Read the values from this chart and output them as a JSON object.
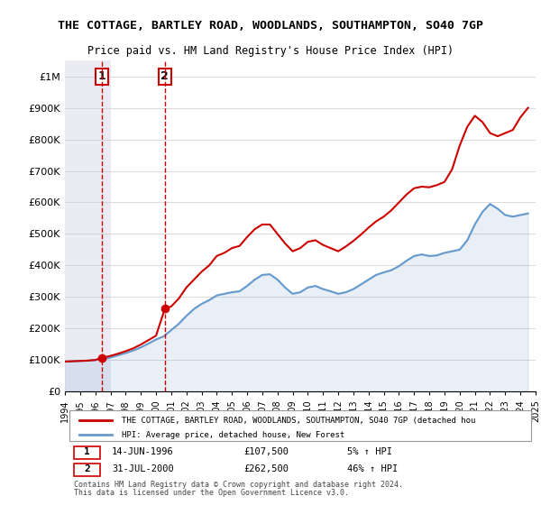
{
  "title": "THE COTTAGE, BARTLEY ROAD, WOODLANDS, SOUTHAMPTON, SO40 7GP",
  "subtitle": "Price paid vs. HM Land Registry's House Price Index (HPI)",
  "legend_line1": "THE COTTAGE, BARTLEY ROAD, WOODLANDS, SOUTHAMPTON, SO40 7GP (detached hou",
  "legend_line2": "HPI: Average price, detached house, New Forest",
  "footnote1": "Contains HM Land Registry data © Crown copyright and database right 2024.",
  "footnote2": "This data is licensed under the Open Government Licence v3.0.",
  "transaction1_label": "1",
  "transaction1_date": "14-JUN-1996",
  "transaction1_price": "£107,500",
  "transaction1_hpi": "5% ↑ HPI",
  "transaction2_label": "2",
  "transaction2_date": "31-JUL-2000",
  "transaction2_price": "£262,500",
  "transaction2_hpi": "46% ↑ HPI",
  "ylim": [
    0,
    1050000
  ],
  "yticks": [
    0,
    100000,
    200000,
    300000,
    400000,
    500000,
    600000,
    700000,
    800000,
    900000,
    1000000
  ],
  "ytick_labels": [
    "£0",
    "£100K",
    "£200K",
    "£300K",
    "£400K",
    "£500K",
    "£600K",
    "£700K",
    "£800K",
    "£900K",
    "£1M"
  ],
  "red_color": "#cc0000",
  "blue_color": "#6699cc",
  "background_hatch_color": "#e8e8f0",
  "transaction1_x": 1996.45,
  "transaction1_y": 107500,
  "transaction2_x": 2000.58,
  "transaction2_y": 262500,
  "hpi_line": {
    "x": [
      1994,
      1994.5,
      1995,
      1995.5,
      1996,
      1996.5,
      1997,
      1997.5,
      1998,
      1998.5,
      1999,
      1999.5,
      2000,
      2000.5,
      2001,
      2001.5,
      2002,
      2002.5,
      2003,
      2003.5,
      2004,
      2004.5,
      2005,
      2005.5,
      2006,
      2006.5,
      2007,
      2007.5,
      2008,
      2008.5,
      2009,
      2009.5,
      2010,
      2010.5,
      2011,
      2011.5,
      2012,
      2012.5,
      2013,
      2013.5,
      2014,
      2014.5,
      2015,
      2015.5,
      2016,
      2016.5,
      2017,
      2017.5,
      2018,
      2018.5,
      2019,
      2019.5,
      2020,
      2020.5,
      2021,
      2021.5,
      2022,
      2022.5,
      2023,
      2023.5,
      2024,
      2024.5
    ],
    "y": [
      95000,
      96000,
      97000,
      98000,
      100000,
      102000,
      108000,
      115000,
      122000,
      130000,
      140000,
      152000,
      165000,
      175000,
      195000,
      215000,
      240000,
      262000,
      278000,
      290000,
      305000,
      310000,
      315000,
      318000,
      335000,
      355000,
      370000,
      372000,
      355000,
      330000,
      310000,
      315000,
      330000,
      335000,
      325000,
      318000,
      310000,
      315000,
      325000,
      340000,
      355000,
      370000,
      378000,
      385000,
      398000,
      415000,
      430000,
      435000,
      430000,
      432000,
      440000,
      445000,
      450000,
      480000,
      530000,
      570000,
      595000,
      580000,
      560000,
      555000,
      560000,
      565000
    ]
  },
  "price_line": {
    "x": [
      1994,
      1994.5,
      1995,
      1995.5,
      1996,
      1996.45,
      1996.5,
      1997,
      1997.5,
      1998,
      1998.5,
      1999,
      1999.5,
      2000,
      2000.58,
      2000.6,
      2001,
      2001.5,
      2002,
      2002.5,
      2003,
      2003.5,
      2004,
      2004.5,
      2005,
      2005.5,
      2006,
      2006.5,
      2007,
      2007.5,
      2008,
      2008.5,
      2009,
      2009.5,
      2010,
      2010.5,
      2011,
      2011.5,
      2012,
      2012.5,
      2013,
      2013.5,
      2014,
      2014.5,
      2015,
      2015.5,
      2016,
      2016.5,
      2017,
      2017.5,
      2018,
      2018.5,
      2019,
      2019.5,
      2020,
      2020.5,
      2021,
      2021.5,
      2022,
      2022.5,
      2023,
      2023.5,
      2024,
      2024.5
    ],
    "y": [
      95000,
      96000,
      97000,
      98000,
      100000,
      107500,
      107500,
      113000,
      120000,
      128000,
      137000,
      149000,
      163000,
      177000,
      262500,
      262500,
      270000,
      295000,
      330000,
      355000,
      380000,
      400000,
      430000,
      440000,
      455000,
      462000,
      490000,
      515000,
      530000,
      530000,
      500000,
      470000,
      445000,
      455000,
      475000,
      480000,
      465000,
      455000,
      445000,
      460000,
      478000,
      498000,
      520000,
      540000,
      555000,
      575000,
      600000,
      625000,
      645000,
      650000,
      648000,
      655000,
      665000,
      705000,
      780000,
      840000,
      875000,
      855000,
      820000,
      810000,
      820000,
      830000,
      870000,
      900000
    ]
  },
  "xtick_years": [
    1994,
    1995,
    1996,
    1997,
    1998,
    1999,
    2000,
    2001,
    2002,
    2003,
    2004,
    2005,
    2006,
    2007,
    2008,
    2009,
    2010,
    2011,
    2012,
    2013,
    2014,
    2015,
    2016,
    2017,
    2018,
    2019,
    2020,
    2021,
    2022,
    2023,
    2024,
    2025
  ]
}
